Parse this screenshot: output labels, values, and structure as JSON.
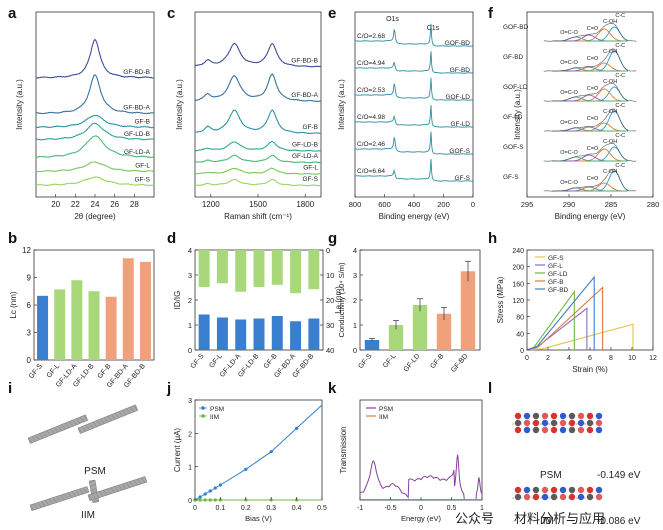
{
  "panel_labels": [
    "a",
    "b",
    "c",
    "d",
    "e",
    "f",
    "g",
    "h",
    "i",
    "j",
    "k",
    "l"
  ],
  "colors": {
    "ramp": [
      "#9fd466",
      "#7ec85c",
      "#4cb87a",
      "#2ea894",
      "#2f93a4",
      "#3a74a0",
      "#3f4f95"
    ],
    "blue": "#3a7fcf",
    "lightgreen": "#a8d87a",
    "salmon": "#f0a07a",
    "peach": "#f5b892"
  },
  "chart_data": [
    {
      "id": "a",
      "type": "line",
      "title": "",
      "xlabel": "2θ (degree)",
      "ylabel": "Intensity (a.u.)",
      "xlim": [
        18,
        30
      ],
      "xticks": [
        20,
        22,
        24,
        26,
        28
      ],
      "peak_center": 24,
      "series": [
        {
          "name": "GF-S",
          "offset": 0,
          "height": 0.6,
          "width": 1.4
        },
        {
          "name": "GF-L",
          "offset": 1,
          "height": 0.7,
          "width": 1.3
        },
        {
          "name": "GF-LD-A",
          "offset": 2,
          "height": 1.6,
          "width": 1.2
        },
        {
          "name": "GF-LD-B",
          "offset": 3.3,
          "height": 1.2,
          "width": 1.1
        },
        {
          "name": "GF-B",
          "offset": 4.2,
          "height": 0.9,
          "width": 1.1
        },
        {
          "name": "GF-BD-A",
          "offset": 5.2,
          "height": 2.8,
          "width": 0.7
        },
        {
          "name": "GF-BD-B",
          "offset": 7.8,
          "height": 2.8,
          "width": 0.6
        }
      ]
    },
    {
      "id": "b",
      "type": "bar",
      "ylabel": "Lc (nm)",
      "ylim": [
        0,
        12
      ],
      "yticks": [
        0,
        3,
        6,
        9,
        12
      ],
      "categories": [
        "GF-S",
        "GF-L",
        "GF-LD-A",
        "GF-LD-B",
        "GF-B",
        "GF-BD-A",
        "GF-BD-B"
      ],
      "values": [
        7.0,
        7.7,
        8.7,
        7.5,
        6.9,
        11.1,
        10.7
      ]
    },
    {
      "id": "c",
      "type": "line",
      "xlabel": "Raman shift (cm⁻¹)",
      "ylabel": "Intensity (a.u.)",
      "xlim": [
        1100,
        1900
      ],
      "xticks": [
        1200,
        1500,
        1800
      ],
      "series": [
        {
          "name": "GF-S",
          "offset": 0,
          "d": 0.5,
          "g": 0.5
        },
        {
          "name": "GF-L",
          "offset": 1,
          "d": 0.5,
          "g": 0.5
        },
        {
          "name": "GF-LD-A",
          "offset": 2,
          "d": 0.6,
          "g": 0.6
        },
        {
          "name": "GF-LD-B",
          "offset": 3,
          "d": 0.8,
          "g": 0.8
        },
        {
          "name": "GF-B",
          "offset": 4.5,
          "d": 2.0,
          "g": 2.0
        },
        {
          "name": "GF-BD-A",
          "offset": 7.3,
          "d": 2.2,
          "g": 2.3
        },
        {
          "name": "GF-BD-B",
          "offset": 10.3,
          "d": 2.0,
          "g": 2.0
        }
      ]
    },
    {
      "id": "d",
      "type": "bar",
      "ylabel_left": "ID/IG",
      "ylabel_right": "La (nm)",
      "ylim_left": [
        0,
        4
      ],
      "yticks_left": [
        0,
        1,
        2,
        3,
        4
      ],
      "ylim_right": [
        0,
        40
      ],
      "yticks_right": [
        0,
        10,
        20,
        30,
        40
      ],
      "categories": [
        "GF-S",
        "GF-L",
        "GF-LD-A",
        "GF-LD-B",
        "GF-B",
        "GF-BD-A",
        "GF-BD-B"
      ],
      "series": [
        {
          "name": "ID/IG",
          "values": [
            1.42,
            1.3,
            1.22,
            1.26,
            1.36,
            1.15,
            1.26
          ]
        },
        {
          "name": "La",
          "values": [
            14.8,
            13.3,
            16.7,
            14.8,
            13.9,
            17.3,
            15.7
          ]
        }
      ]
    },
    {
      "id": "e",
      "type": "line",
      "xlabel": "Binding energy (eV)",
      "ylabel": "Intensity (a.u.)",
      "xlim": [
        800,
        0
      ],
      "xticks": [
        800,
        600,
        400,
        200,
        0
      ],
      "peaks": [
        "O1s",
        "C1s"
      ],
      "series": [
        {
          "name": "GF-S",
          "ratio": "C/O=6.64"
        },
        {
          "name": "GOF-S",
          "ratio": "C/O=2.46"
        },
        {
          "name": "GF-LD",
          "ratio": "C/O=4.98"
        },
        {
          "name": "GOF-LD",
          "ratio": "C/O=2.53"
        },
        {
          "name": "GF-BD",
          "ratio": "C/O=4.94"
        },
        {
          "name": "GOF-BD",
          "ratio": "C/O=2.68"
        }
      ]
    },
    {
      "id": "f",
      "type": "line",
      "xlabel": "Binding energy (eV)",
      "ylabel": "Intensity (a.u.)",
      "xlim": [
        295,
        280
      ],
      "xticks": [
        295,
        290,
        285,
        280
      ],
      "components": [
        "C-C",
        "C-OH",
        "C=O",
        "O=C-O"
      ],
      "samples": [
        "GF-S",
        "GOF-S",
        "GF-LD",
        "GOF-LD",
        "GF-BD",
        "GOF-BD"
      ]
    },
    {
      "id": "g",
      "type": "bar",
      "ylabel": "Conductivity (10⁴ S/m)",
      "ylim": [
        0,
        4
      ],
      "yticks": [
        0,
        1,
        2,
        3,
        4
      ],
      "categories": [
        "GF-S",
        "GF-L",
        "GF-LD",
        "GF-B",
        "GF-BD"
      ],
      "values": [
        0.4,
        1.0,
        1.8,
        1.45,
        3.15
      ],
      "errors": [
        0.06,
        0.18,
        0.25,
        0.25,
        0.4
      ]
    },
    {
      "id": "h",
      "type": "line",
      "xlabel": "Strain (%)",
      "ylabel": "Stress (MPa)",
      "xlim": [
        0,
        12
      ],
      "xticks": [
        0,
        2,
        4,
        6,
        8,
        10,
        12
      ],
      "ylim": [
        0,
        240
      ],
      "yticks": [
        0,
        40,
        80,
        120,
        160,
        200,
        240
      ],
      "series": [
        {
          "name": "GF-S",
          "strain": 10.1,
          "stress": 62
        },
        {
          "name": "GF-L",
          "strain": 5.7,
          "stress": 100
        },
        {
          "name": "GF-LD",
          "strain": 4.5,
          "stress": 140
        },
        {
          "name": "GF-B",
          "strain": 7.2,
          "stress": 150
        },
        {
          "name": "GF-BD",
          "strain": 6.4,
          "stress": 175
        }
      ]
    },
    {
      "id": "j",
      "type": "line",
      "xlabel": "Bias (V)",
      "ylabel": "Current (μA)",
      "xlim": [
        0,
        0.5
      ],
      "xticks": [
        0.0,
        0.1,
        0.2,
        0.3,
        0.4,
        0.5
      ],
      "ylim": [
        0,
        3
      ],
      "yticks": [
        0,
        1,
        2,
        3
      ],
      "series": [
        {
          "name": "PSM",
          "x": [
            0.0,
            0.02,
            0.04,
            0.06,
            0.08,
            0.1,
            0.2,
            0.3,
            0.4
          ],
          "y": [
            0.0,
            0.09,
            0.18,
            0.27,
            0.36,
            0.45,
            0.92,
            1.45,
            2.15
          ]
        },
        {
          "name": "IIM",
          "x": [
            0.0,
            0.02,
            0.04,
            0.06,
            0.08,
            0.1,
            0.2,
            0.3,
            0.4
          ],
          "y": [
            0,
            0,
            0,
            0,
            0,
            0,
            0,
            0,
            0
          ]
        }
      ]
    },
    {
      "id": "k",
      "type": "line",
      "xlabel": "Energy (eV)",
      "ylabel": "Transmission",
      "xlim": [
        -1.0,
        1.0
      ],
      "xticks": [
        -1.0,
        -0.5,
        0.0,
        0.5,
        1.0
      ],
      "legend": [
        "PSM",
        "IIM"
      ]
    }
  ],
  "schematic_i": {
    "labels": [
      "PSM",
      "IIM"
    ]
  },
  "panel_l": {
    "labels": [
      "PSM",
      "IIM"
    ],
    "energies": [
      "-0.149 eV",
      "-0.086 eV"
    ]
  },
  "watermark": {
    "left": "公众号",
    "right": "材料分析与应用"
  }
}
